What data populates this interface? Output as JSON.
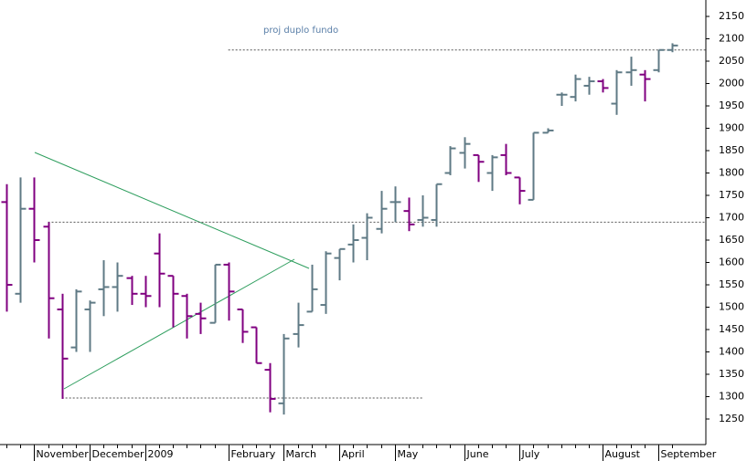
{
  "chart_data": {
    "type": "ohlc",
    "annotation": "proj duplo fundo",
    "categories": [
      null,
      null,
      "November",
      null,
      null,
      null,
      "December",
      null,
      null,
      null,
      "2009",
      null,
      null,
      null,
      null,
      null,
      "February",
      null,
      null,
      null,
      "March",
      null,
      null,
      null,
      "April",
      null,
      null,
      null,
      "May",
      null,
      null,
      null,
      null,
      "June",
      null,
      null,
      null,
      "July",
      null,
      null,
      null,
      null,
      null,
      "August",
      null,
      null,
      null,
      "September",
      null
    ],
    "open": [
      1735,
      1530,
      1720,
      1680,
      1495,
      1410,
      1495,
      1540,
      1545,
      1565,
      1530,
      1620,
      1570,
      1525,
      1485,
      1465,
      1595,
      1495,
      1455,
      1360,
      1285,
      1440,
      1490,
      1505,
      1610,
      1640,
      1655,
      1675,
      1735,
      1715,
      1695,
      1695,
      1800,
      1845,
      1840,
      1800,
      1840,
      1790,
      1740,
      1890,
      1975,
      1970,
      1995,
      2005,
      1955,
      2025,
      2020,
      2030,
      2075
    ],
    "high": [
      1775,
      1790,
      1790,
      1690,
      1530,
      1540,
      1515,
      1605,
      1600,
      1570,
      1570,
      1665,
      1570,
      1530,
      1510,
      1595,
      1600,
      1495,
      1455,
      1375,
      1440,
      1510,
      1595,
      1625,
      1630,
      1685,
      1710,
      1760,
      1770,
      1745,
      1750,
      1775,
      1860,
      1880,
      1840,
      1840,
      1865,
      1790,
      1890,
      1900,
      1980,
      2020,
      2015,
      2010,
      2030,
      2060,
      2030,
      2075,
      2090
    ],
    "low": [
      1490,
      1510,
      1600,
      1430,
      1295,
      1400,
      1400,
      1480,
      1490,
      1505,
      1500,
      1500,
      1455,
      1430,
      1440,
      1465,
      1470,
      1420,
      1375,
      1265,
      1260,
      1410,
      1490,
      1485,
      1560,
      1600,
      1605,
      1665,
      1690,
      1670,
      1680,
      1680,
      1795,
      1810,
      1780,
      1760,
      1795,
      1730,
      1740,
      1890,
      1950,
      1960,
      1975,
      1980,
      1930,
      1995,
      1960,
      2025,
      2070
    ],
    "close": [
      1550,
      1720,
      1650,
      1520,
      1385,
      1535,
      1510,
      1545,
      1570,
      1530,
      1525,
      1575,
      1530,
      1480,
      1475,
      1595,
      1535,
      1445,
      1375,
      1295,
      1430,
      1460,
      1540,
      1620,
      1630,
      1650,
      1700,
      1720,
      1735,
      1685,
      1700,
      1775,
      1855,
      1865,
      1825,
      1835,
      1800,
      1760,
      1890,
      1895,
      1975,
      2010,
      2005,
      1990,
      2025,
      2030,
      2010,
      2075,
      2085
    ],
    "up_color": "#5f7a85",
    "down_color": "#800080",
    "reference_lines": [
      2075,
      1690,
      1297
    ],
    "ylim": [
      1250,
      2150
    ],
    "yticks": [
      1250,
      1300,
      1350,
      1400,
      1450,
      1500,
      1550,
      1600,
      1650,
      1700,
      1750,
      1800,
      1850,
      1900,
      1950,
      2000,
      2050,
      2100,
      2150
    ]
  }
}
